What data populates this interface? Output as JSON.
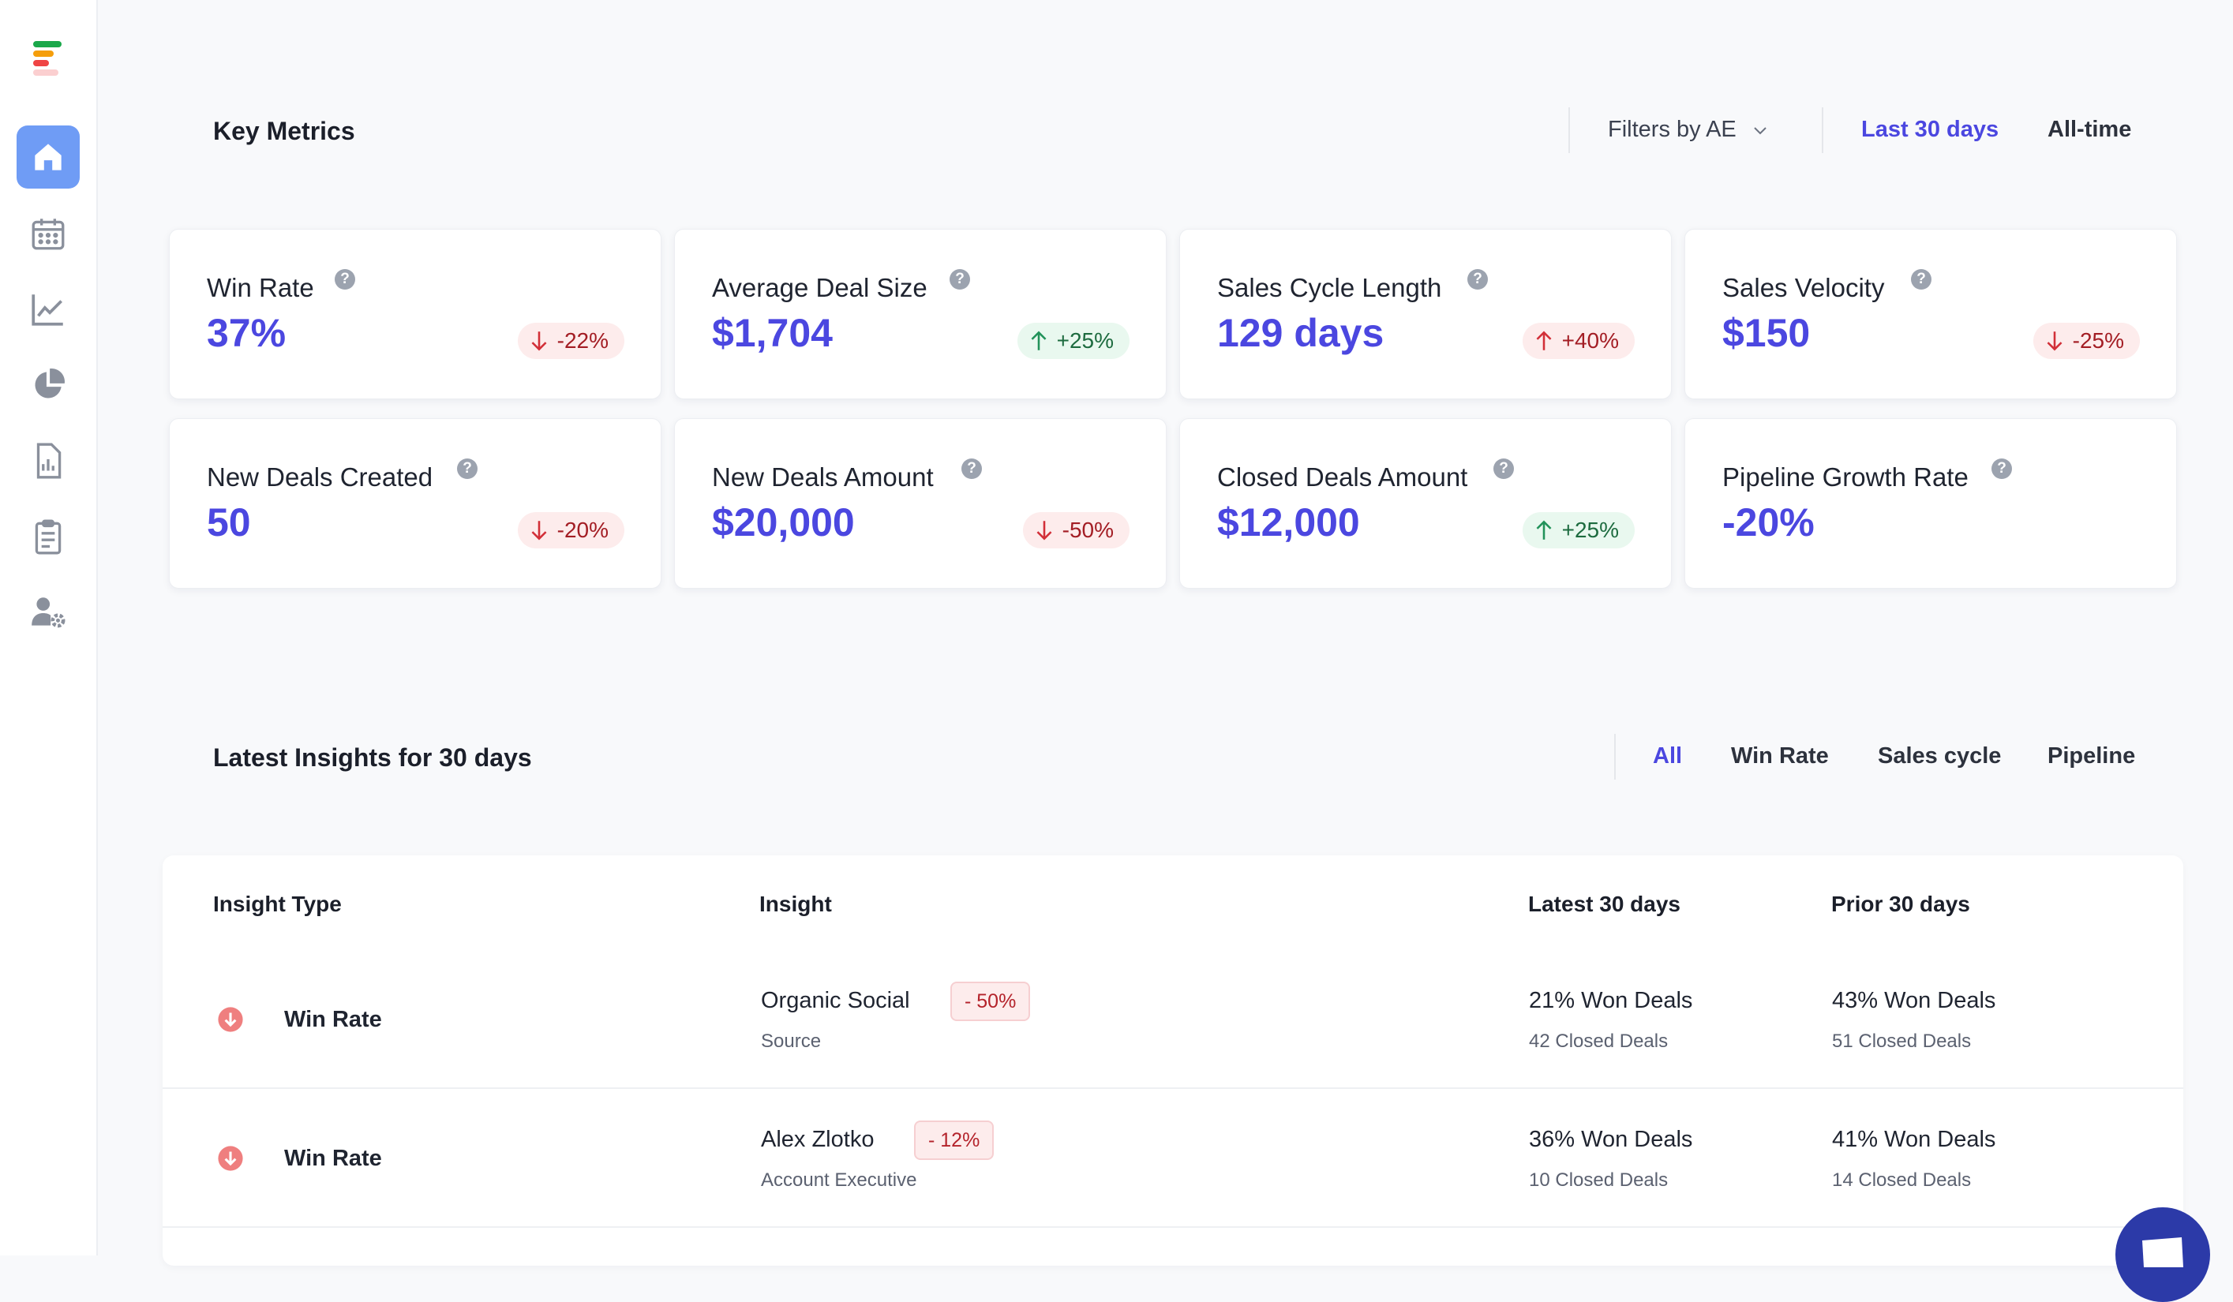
{
  "key_metrics": {
    "title": "Key Metrics",
    "filter_label": "Filters by AE",
    "range_options": [
      "Last 30 days",
      "All-time"
    ],
    "active_range": "Last 30 days",
    "cards": [
      {
        "label": "Win Rate",
        "value": "37%",
        "change": "-22%",
        "direction": "down"
      },
      {
        "label": "Average Deal Size",
        "value": "$1,704",
        "change": "+25%",
        "direction": "up"
      },
      {
        "label": "Sales Cycle Length",
        "value": "129 days",
        "change": "+40%",
        "direction": "up-bad"
      },
      {
        "label": "Sales Velocity",
        "value": "$150",
        "change": "-25%",
        "direction": "down"
      },
      {
        "label": "New Deals Created",
        "value": "50",
        "change": "-20%",
        "direction": "down"
      },
      {
        "label": "New Deals Amount",
        "value": "$20,000",
        "change": "-50%",
        "direction": "down"
      },
      {
        "label": "Closed Deals Amount",
        "value": "$12,000",
        "change": "+25%",
        "direction": "up"
      },
      {
        "label": "Pipeline Growth Rate",
        "value": "-20%",
        "change": "",
        "direction": "none"
      }
    ]
  },
  "insights": {
    "title": "Latest Insights for 30 days",
    "tabs": [
      "All",
      "Win Rate",
      "Sales cycle",
      "Pipeline"
    ],
    "active_tab": "All",
    "columns": [
      "Insight Type",
      "Insight",
      "Latest 30 days",
      "Prior 30 days"
    ],
    "rows": [
      {
        "type": "Win Rate",
        "name": "Organic Social",
        "category": "Source",
        "change": "- 50%",
        "latest_main": "21% Won Deals",
        "latest_sub": "42 Closed Deals",
        "prior_main": "43% Won Deals",
        "prior_sub": "51 Closed Deals"
      },
      {
        "type": "Win Rate",
        "name": "Alex Zlotko",
        "category": "Account Executive",
        "change": "- 12%",
        "latest_main": "36% Won Deals",
        "latest_sub": "10 Closed Deals",
        "prior_main": "41% Won Deals",
        "prior_sub": "14 Closed Deals"
      }
    ]
  },
  "colors": {
    "accent": "#4b47e0",
    "active_nav": "#6f9cf5",
    "negative": "#a31d24",
    "positive": "#1d6b3f"
  }
}
